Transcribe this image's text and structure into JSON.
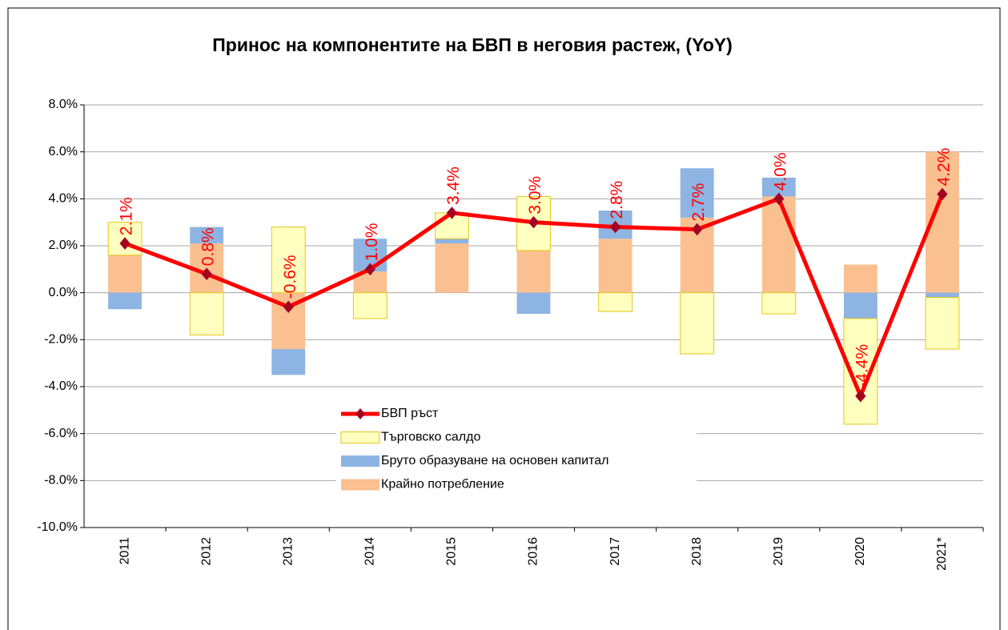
{
  "chart_data": {
    "type": "bar",
    "stacked": true,
    "title": "Принос на компонентите на БВП в неговия растеж, (YoY)",
    "categories": [
      "2011",
      "2012",
      "2013",
      "2014",
      "2015",
      "2016",
      "2017",
      "2018",
      "2019",
      "2020",
      "2021*"
    ],
    "series": [
      {
        "name": "Крайно потребление",
        "color": "#fac090",
        "values": [
          1.6,
          2.1,
          -2.4,
          0.9,
          2.1,
          1.8,
          2.3,
          3.2,
          4.1,
          1.2,
          6.0
        ]
      },
      {
        "name": "Бруто образуване на основен капитал",
        "color": "#8db4e2",
        "values": [
          -0.7,
          0.7,
          -1.1,
          1.4,
          0.2,
          -0.9,
          1.2,
          2.1,
          0.8,
          -1.1,
          -0.2
        ]
      },
      {
        "name": "Търговско салдо",
        "color": "#ffffc0",
        "edgecolor": "#e6c619",
        "values": [
          1.4,
          -1.8,
          2.8,
          -1.1,
          1.1,
          2.3,
          -0.8,
          -2.6,
          -0.9,
          -4.5,
          -2.2
        ]
      },
      {
        "name": "БВП ръст",
        "type": "line",
        "color": "#ff0000",
        "marker_color": "#a50021",
        "label_color": "#ff0000",
        "values": [
          2.1,
          0.8,
          -0.6,
          1.0,
          3.4,
          3.0,
          2.8,
          2.7,
          4.0,
          -4.4,
          4.2
        ],
        "value_labels": [
          "2.1%",
          "0.8%",
          "-0.6%",
          "1.0%",
          "3.4%",
          "3.0%",
          "2.8%",
          "2.7%",
          "4.0%",
          "-4.4%",
          "4.2%"
        ]
      }
    ],
    "ylim": [
      -10,
      8
    ],
    "yticks": [
      {
        "value": -10,
        "label": "-10.0%"
      },
      {
        "value": -8,
        "label": "-8.0%"
      },
      {
        "value": -6,
        "label": "-6.0%"
      },
      {
        "value": -4,
        "label": "-4.0%"
      },
      {
        "value": -2,
        "label": "-2.0%"
      },
      {
        "value": 0,
        "label": "0.0%"
      },
      {
        "value": 2,
        "label": "2.0%"
      },
      {
        "value": 4,
        "label": "4.0%"
      },
      {
        "value": 6,
        "label": "6.0%"
      },
      {
        "value": 8,
        "label": "8.0%"
      }
    ],
    "grid": true,
    "legend": "lower center"
  }
}
